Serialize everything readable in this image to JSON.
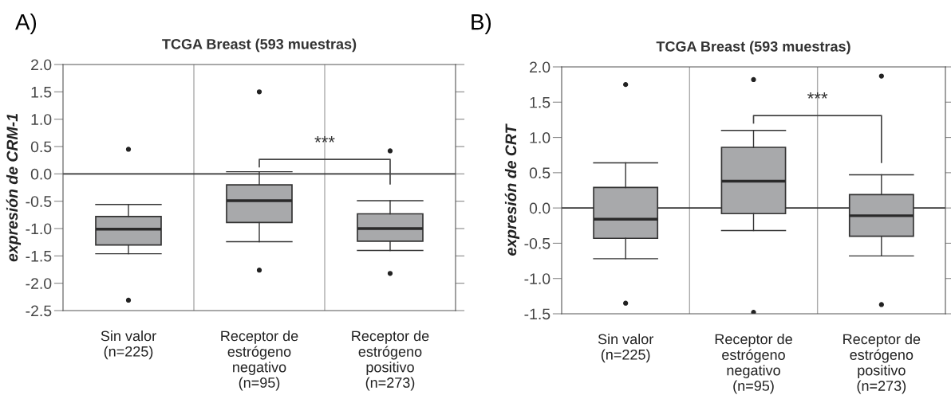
{
  "chart_data": [
    {
      "type": "box",
      "title": "TCGA Breast (593 muestras)",
      "ylabel": "expresión de CRM-1",
      "annotations": [
        "A)",
        "***"
      ],
      "categories": [
        "Sin valor\n(n=225)",
        "Receptor de\nestrógeno\nnegativo\n(n=95)",
        "Receptor de\nestrógeno\npositivo\n(n=273)"
      ],
      "color": "#a8a9ab",
      "boxes": [
        {
          "low": -1.46,
          "q1": -1.3,
          "median": -1.01,
          "q3": -0.78,
          "high": -0.56,
          "outliers": [
            0.45,
            -2.31
          ]
        },
        {
          "low": -1.24,
          "q1": -0.89,
          "median": -0.49,
          "q3": -0.2,
          "high": 0.04,
          "outliers": [
            1.5,
            -1.76
          ]
        },
        {
          "low": -1.4,
          "q1": -1.23,
          "median": -1.0,
          "q3": -0.73,
          "high": -0.49,
          "outliers": [
            0.42,
            -1.82
          ]
        }
      ],
      "ylim": [
        -2.5,
        2.0
      ],
      "yticks": [
        {
          "value": 2.0,
          "label": "2.0"
        },
        1.5,
        {
          "value": 1.0,
          "label": "1.0"
        },
        0.5,
        {
          "value": 0.0,
          "label": "0.0"
        },
        -0.5,
        {
          "value": -1.0,
          "label": "-1.0"
        },
        -1.5,
        {
          "value": -2.0,
          "label": "-2.0"
        },
        -2.5
      ],
      "ref_lines": [
        {
          "axis": "y",
          "value": 0,
          "color": "#333333"
        }
      ],
      "grid": "x"
    },
    {
      "type": "box",
      "title": "TCGA Breast (593 muestras)",
      "ylabel": "expresión de CRT",
      "annotations": [
        "B)",
        "***"
      ],
      "categories": [
        "Sin valor\n(n=225)",
        "Receptor de\nestrógeno\nnegativo\n(n=95)",
        "Receptor de\nestrógeno\npositivo\n(n=273)"
      ],
      "color": "#a8a9ab",
      "boxes": [
        {
          "low": -0.72,
          "q1": -0.43,
          "median": -0.16,
          "q3": 0.29,
          "high": 0.64,
          "outliers": [
            1.75,
            -1.35
          ]
        },
        {
          "low": -0.32,
          "q1": -0.08,
          "median": 0.38,
          "q3": 0.86,
          "high": 1.1,
          "outliers": [
            1.82,
            -1.48
          ]
        },
        {
          "low": -0.68,
          "q1": -0.4,
          "median": -0.11,
          "q3": 0.19,
          "high": 0.47,
          "outliers": [
            1.87,
            -1.37
          ]
        }
      ],
      "ylim": [
        -1.5,
        2.0
      ],
      "yticks": [
        {
          "value": 2.0,
          "label": "2.0"
        },
        1.5,
        {
          "value": 1.0,
          "label": "1.0"
        },
        0.5,
        {
          "value": 0.0,
          "label": "0.0"
        },
        -0.5,
        {
          "value": -1.0,
          "label": "-1.0"
        },
        -1.5
      ],
      "ref_lines": [
        {
          "axis": "y",
          "value": 0,
          "color": "#333333"
        }
      ],
      "grid": "x"
    }
  ]
}
